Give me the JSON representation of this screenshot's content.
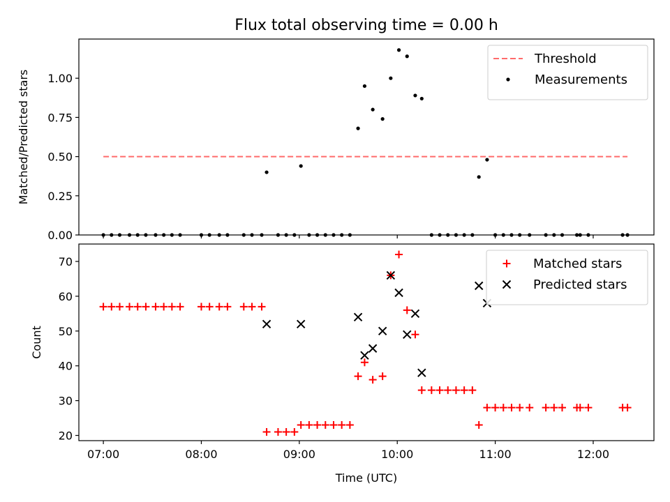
{
  "chart_data": {
    "title": "Flux total observing time = 0.00 h",
    "xlabel": "Time (UTC)",
    "x_ticks": [
      "07:00",
      "08:00",
      "09:00",
      "10:00",
      "11:00",
      "12:00"
    ],
    "x_tick_hours": [
      7,
      8,
      9,
      10,
      11,
      12
    ],
    "xlim_hours": [
      6.75,
      12.62
    ],
    "panels": [
      {
        "type": "scatter",
        "ylabel": "Matched/Predicted stars",
        "ylim": [
          0,
          1.25
        ],
        "y_ticks": [
          "0.00",
          "0.25",
          "0.50",
          "0.75",
          "1.00"
        ],
        "y_tick_values": [
          0,
          0.25,
          0.5,
          0.75,
          1.0
        ],
        "legend_position": "top-right",
        "threshold": {
          "name": "Threshold",
          "value": 0.5,
          "x_range_hours": [
            7.0,
            12.35
          ],
          "color": "#ff6b6b",
          "style": "dashed"
        },
        "series": [
          {
            "name": "Measurements",
            "color": "#000000",
            "marker": "dot",
            "points": [
              [
                "07:00",
                0
              ],
              [
                "07:05",
                0
              ],
              [
                "07:10",
                0
              ],
              [
                "07:16",
                0
              ],
              [
                "07:21",
                0
              ],
              [
                "07:26",
                0
              ],
              [
                "07:32",
                0
              ],
              [
                "07:37",
                0
              ],
              [
                "07:42",
                0
              ],
              [
                "07:47",
                0
              ],
              [
                "08:00",
                0
              ],
              [
                "08:05",
                0
              ],
              [
                "08:11",
                0
              ],
              [
                "08:16",
                0
              ],
              [
                "08:26",
                0
              ],
              [
                "08:31",
                0
              ],
              [
                "08:37",
                0
              ],
              [
                "08:40",
                0.4
              ],
              [
                "08:47",
                0
              ],
              [
                "08:52",
                0
              ],
              [
                "08:57",
                0
              ],
              [
                "09:01",
                0.44
              ],
              [
                "09:06",
                0
              ],
              [
                "09:11",
                0
              ],
              [
                "09:16",
                0
              ],
              [
                "09:21",
                0
              ],
              [
                "09:26",
                0
              ],
              [
                "09:31",
                0
              ],
              [
                "09:36",
                0.68
              ],
              [
                "09:40",
                0.95
              ],
              [
                "09:45",
                0.8
              ],
              [
                "09:51",
                0.74
              ],
              [
                "09:56",
                1.0
              ],
              [
                "10:01",
                1.18
              ],
              [
                "10:06",
                1.14
              ],
              [
                "10:11",
                0.89
              ],
              [
                "10:15",
                0.87
              ],
              [
                "10:21",
                0
              ],
              [
                "10:26",
                0
              ],
              [
                "10:31",
                0
              ],
              [
                "10:36",
                0
              ],
              [
                "10:41",
                0
              ],
              [
                "10:46",
                0
              ],
              [
                "10:50",
                0.37
              ],
              [
                "10:55",
                0.48
              ],
              [
                "11:00",
                0
              ],
              [
                "11:05",
                0
              ],
              [
                "11:10",
                0
              ],
              [
                "11:15",
                0
              ],
              [
                "11:21",
                0
              ],
              [
                "11:31",
                0
              ],
              [
                "11:36",
                0
              ],
              [
                "11:41",
                0
              ],
              [
                "11:50",
                0
              ],
              [
                "11:52",
                0
              ],
              [
                "11:57",
                0
              ],
              [
                "12:18",
                0
              ],
              [
                "12:21",
                0
              ]
            ]
          }
        ]
      },
      {
        "type": "scatter",
        "ylabel": "Count",
        "ylim": [
          18.5,
          75
        ],
        "y_ticks": [
          "20",
          "30",
          "40",
          "50",
          "60",
          "70"
        ],
        "y_tick_values": [
          20,
          30,
          40,
          50,
          60,
          70
        ],
        "legend_position": "top-right",
        "series": [
          {
            "name": "Matched stars",
            "color": "#ff0000",
            "marker": "plus",
            "points": [
              [
                "07:00",
                57
              ],
              [
                "07:05",
                57
              ],
              [
                "07:10",
                57
              ],
              [
                "07:16",
                57
              ],
              [
                "07:21",
                57
              ],
              [
                "07:26",
                57
              ],
              [
                "07:32",
                57
              ],
              [
                "07:37",
                57
              ],
              [
                "07:42",
                57
              ],
              [
                "07:47",
                57
              ],
              [
                "08:00",
                57
              ],
              [
                "08:05",
                57
              ],
              [
                "08:11",
                57
              ],
              [
                "08:16",
                57
              ],
              [
                "08:26",
                57
              ],
              [
                "08:31",
                57
              ],
              [
                "08:37",
                57
              ],
              [
                "08:40",
                21
              ],
              [
                "08:47",
                21
              ],
              [
                "08:52",
                21
              ],
              [
                "08:57",
                21
              ],
              [
                "09:01",
                23
              ],
              [
                "09:06",
                23
              ],
              [
                "09:11",
                23
              ],
              [
                "09:16",
                23
              ],
              [
                "09:21",
                23
              ],
              [
                "09:26",
                23
              ],
              [
                "09:31",
                23
              ],
              [
                "09:36",
                37
              ],
              [
                "09:40",
                41
              ],
              [
                "09:45",
                36
              ],
              [
                "09:51",
                37
              ],
              [
                "09:56",
                66
              ],
              [
                "10:01",
                72
              ],
              [
                "10:06",
                56
              ],
              [
                "10:11",
                49
              ],
              [
                "10:15",
                33
              ],
              [
                "10:21",
                33
              ],
              [
                "10:26",
                33
              ],
              [
                "10:31",
                33
              ],
              [
                "10:36",
                33
              ],
              [
                "10:41",
                33
              ],
              [
                "10:46",
                33
              ],
              [
                "10:50",
                23
              ],
              [
                "10:55",
                28
              ],
              [
                "11:00",
                28
              ],
              [
                "11:05",
                28
              ],
              [
                "11:10",
                28
              ],
              [
                "11:15",
                28
              ],
              [
                "11:21",
                28
              ],
              [
                "11:31",
                28
              ],
              [
                "11:36",
                28
              ],
              [
                "11:41",
                28
              ],
              [
                "11:50",
                28
              ],
              [
                "11:52",
                28
              ],
              [
                "11:57",
                28
              ],
              [
                "12:18",
                28
              ],
              [
                "12:21",
                28
              ]
            ]
          },
          {
            "name": "Predicted stars",
            "color": "#000000",
            "marker": "x",
            "points": [
              [
                "08:40",
                52
              ],
              [
                "09:01",
                52
              ],
              [
                "09:36",
                54
              ],
              [
                "09:40",
                43
              ],
              [
                "09:45",
                45
              ],
              [
                "09:51",
                50
              ],
              [
                "09:56",
                66
              ],
              [
                "10:01",
                61
              ],
              [
                "10:06",
                49
              ],
              [
                "10:11",
                55
              ],
              [
                "10:15",
                38
              ],
              [
                "10:50",
                63
              ],
              [
                "10:55",
                58
              ]
            ]
          }
        ]
      }
    ]
  }
}
